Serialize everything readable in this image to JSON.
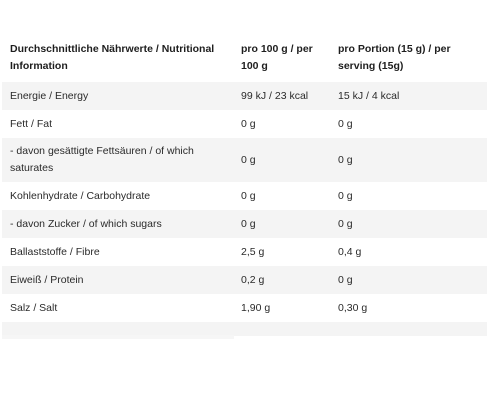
{
  "table": {
    "headers": [
      "Durchschnittliche Nährwerte / Nutritional Information",
      "pro 100 g / per 100 g",
      "pro Portion (15 g) / per serving (15g)"
    ],
    "rows": [
      [
        "Energie / Energy",
        "99 kJ / 23 kcal",
        "15 kJ / 4 kcal"
      ],
      [
        "Fett / Fat",
        "0 g",
        "0 g"
      ],
      [
        "- davon gesättigte Fettsäuren / of which saturates",
        "0 g",
        "0 g"
      ],
      [
        "Kohlenhydrate / Carbohydrate",
        "0 g",
        "0 g"
      ],
      [
        "- davon Zucker / of which sugars",
        "0 g",
        "0 g"
      ],
      [
        "Ballaststoffe / Fibre",
        "2,5 g",
        "0,4 g"
      ],
      [
        "Eiweiß / Protein",
        "0,2 g",
        "0 g"
      ],
      [
        "Salz / Salt",
        "1,90 g",
        "0,30 g"
      ]
    ]
  }
}
